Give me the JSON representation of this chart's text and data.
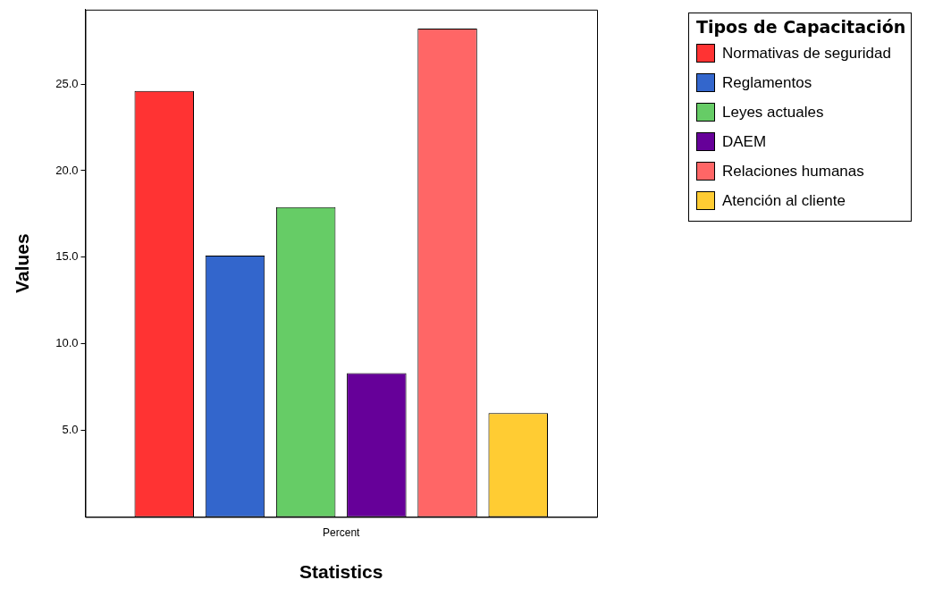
{
  "chart_data": {
    "type": "bar",
    "xlabel": "Statistics",
    "ylabel": "Values",
    "legend_title": "Tipos de Capacitación",
    "legend": "right",
    "grid": false,
    "categories": [
      "Percent"
    ],
    "ylim": [
      0,
      29.3
    ],
    "yticks": [
      {
        "value": 5,
        "label": "5.0"
      },
      {
        "value": 10,
        "label": "10.0"
      },
      {
        "value": 15,
        "label": "15.0"
      },
      {
        "value": 20,
        "label": "20.0"
      },
      {
        "value": 25,
        "label": "25.0"
      }
    ],
    "series": [
      {
        "name": "Normativas de seguridad",
        "color": "#ff3333",
        "values": [
          24.6
        ]
      },
      {
        "name": "Reglamentos",
        "color": "#3366cc",
        "values": [
          15.1
        ]
      },
      {
        "name": "Leyes actuales",
        "color": "#66cc66",
        "values": [
          17.9
        ]
      },
      {
        "name": "DAEM",
        "color": "#660099",
        "values": [
          8.3
        ]
      },
      {
        "name": "Relaciones humanas",
        "color": "#ff6666",
        "values": [
          28.2
        ]
      },
      {
        "name": "Atención al cliente",
        "color": "#ffcc33",
        "values": [
          6.0
        ]
      }
    ]
  }
}
